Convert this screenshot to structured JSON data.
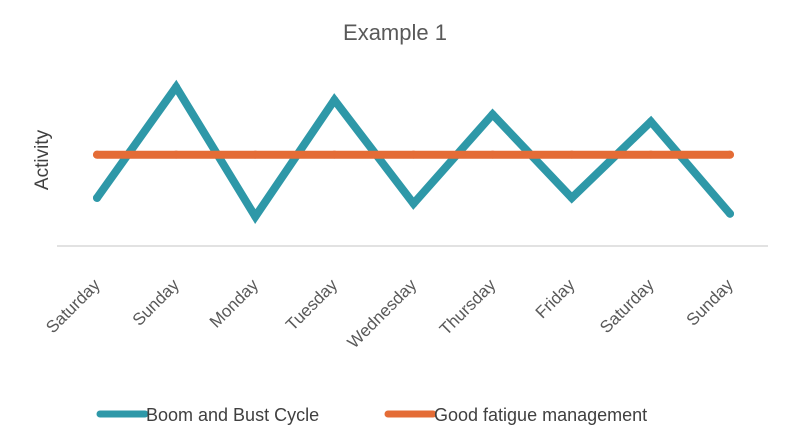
{
  "chart_data": {
    "type": "line",
    "title": "Example 1",
    "xlabel": "",
    "ylabel": "Activity",
    "categories": [
      "Saturday",
      "Sunday",
      "Monday",
      "Tuesday",
      "Wednesday",
      "Thursday",
      "Friday",
      "Saturday",
      "Sunday"
    ],
    "ylim": [
      0,
      10
    ],
    "grid": false,
    "legend_position": "bottom",
    "series": [
      {
        "name": "Boom and Bust Cycle",
        "color": "#2E98A8",
        "values": [
          2.3,
          10.0,
          1.0,
          9.1,
          1.9,
          8.1,
          2.3,
          7.6,
          1.2
        ]
      },
      {
        "name": "Good fatigue management",
        "color": "#E46C36",
        "values": [
          5.3,
          5.3,
          5.3,
          5.3,
          5.3,
          5.3,
          5.3,
          5.3,
          5.3
        ]
      }
    ]
  }
}
